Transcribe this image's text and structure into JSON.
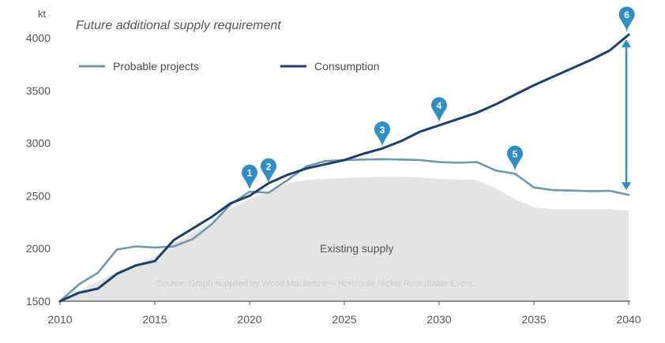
{
  "chart_data": {
    "type": "line",
    "title": "Future additional supply requirement",
    "unit_label": "kt",
    "xlim": [
      2010,
      2040
    ],
    "ylim": [
      1500,
      4100
    ],
    "x_ticks": [
      2010,
      2015,
      2020,
      2025,
      2030,
      2035,
      2040
    ],
    "y_ticks": [
      1500,
      2000,
      2500,
      3000,
      3500,
      4000
    ],
    "area": {
      "label": "Existing supply",
      "x": [
        2010,
        2011,
        2012,
        2013,
        2014,
        2015,
        2016,
        2017,
        2018,
        2019,
        2020,
        2021,
        2022,
        2023,
        2024,
        2025,
        2026,
        2027,
        2028,
        2029,
        2030,
        2031,
        2032,
        2033,
        2034,
        2035,
        2036,
        2037,
        2038,
        2039,
        2040
      ],
      "values": [
        1500,
        1600,
        1690,
        1780,
        1850,
        1920,
        2050,
        2150,
        2250,
        2380,
        2470,
        2540,
        2620,
        2650,
        2660,
        2670,
        2675,
        2680,
        2680,
        2675,
        2660,
        2655,
        2650,
        2570,
        2470,
        2390,
        2375,
        2375,
        2375,
        2375,
        2360
      ],
      "color": "#e4e4e4"
    },
    "series": [
      {
        "name": "Probable projects",
        "color": "#6f98ad",
        "x": [
          2010,
          2011,
          2012,
          2013,
          2014,
          2015,
          2016,
          2017,
          2018,
          2019,
          2020,
          2021,
          2022,
          2023,
          2024,
          2025,
          2026,
          2027,
          2028,
          2029,
          2030,
          2031,
          2032,
          2033,
          2034,
          2035,
          2036,
          2037,
          2038,
          2039,
          2040
        ],
        "values": [
          1500,
          1660,
          1770,
          1990,
          2020,
          2010,
          2020,
          2090,
          2230,
          2420,
          2540,
          2530,
          2650,
          2780,
          2830,
          2840,
          2845,
          2848,
          2845,
          2840,
          2820,
          2815,
          2820,
          2740,
          2710,
          2580,
          2555,
          2550,
          2545,
          2548,
          2510
        ]
      },
      {
        "name": "Consumption",
        "color": "#1d3f6e",
        "x": [
          2010,
          2011,
          2012,
          2013,
          2014,
          2015,
          2016,
          2017,
          2018,
          2019,
          2020,
          2021,
          2022,
          2023,
          2024,
          2025,
          2026,
          2027,
          2028,
          2029,
          2030,
          2031,
          2032,
          2033,
          2034,
          2035,
          2036,
          2037,
          2038,
          2039,
          2040
        ],
        "values": [
          1500,
          1580,
          1620,
          1760,
          1840,
          1880,
          2080,
          2190,
          2300,
          2430,
          2500,
          2620,
          2700,
          2760,
          2800,
          2840,
          2900,
          2950,
          3020,
          3110,
          3170,
          3230,
          3290,
          3370,
          3460,
          3550,
          3630,
          3710,
          3790,
          3880,
          4030
        ]
      }
    ],
    "markers": [
      {
        "label": "1",
        "x": 2020,
        "y": 2540
      },
      {
        "label": "2",
        "x": 2021,
        "y": 2600
      },
      {
        "label": "3",
        "x": 2027,
        "y": 2950
      },
      {
        "label": "4",
        "x": 2030,
        "y": 3180
      },
      {
        "label": "5",
        "x": 2034,
        "y": 2720
      },
      {
        "label": "6",
        "x": 2039.9,
        "y": 4040
      }
    ],
    "gap_arrow": {
      "x": 2040,
      "from": 2510,
      "to": 4030,
      "color": "#2f8fc5"
    },
    "marker_color": "#2f8fc5",
    "legend_placement": "top-left",
    "source": "Source: Graph supplied by Wood Mackenzie – Horizonte Nickel Roundtable Event.",
    "grid": false
  }
}
